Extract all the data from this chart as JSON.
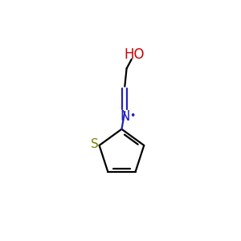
{
  "background_color": "#ffffff",
  "ho_label": "HO",
  "ho_color": "#cc0000",
  "n_label": "N",
  "n_color": "#2222bb",
  "s_label": "S",
  "s_color": "#808000",
  "bond_color": "#000000",
  "cn_color": "#2222bb",
  "radical_dot": "•",
  "line_width": 1.6,
  "fig_width": 3.0,
  "fig_height": 3.0,
  "dpi": 100
}
